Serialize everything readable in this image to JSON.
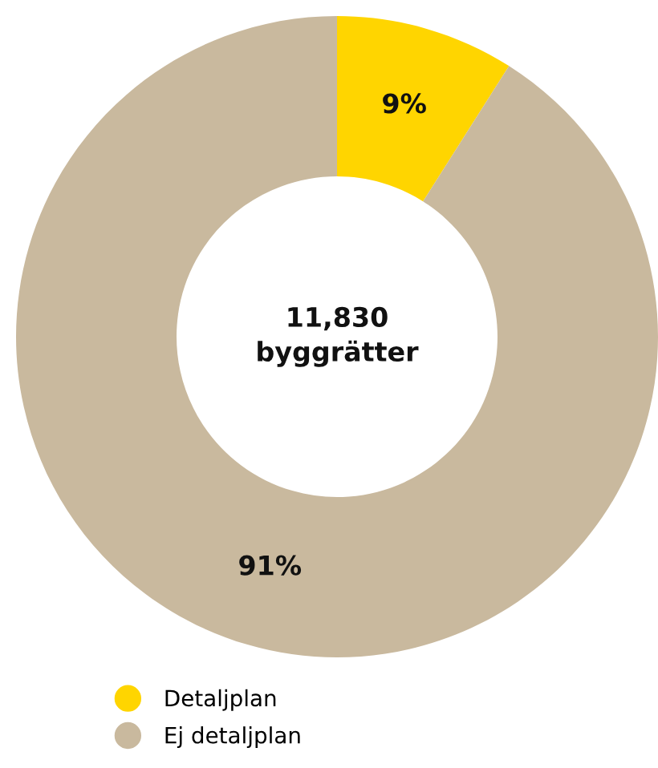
{
  "chart_data": {
    "type": "donut",
    "categories": [
      "Detaljplan",
      "Ej detaljplan"
    ],
    "values": [
      9,
      91
    ],
    "colors": [
      "#ffd500",
      "#c9b99e"
    ],
    "value_labels": [
      "9%",
      "91%"
    ],
    "annotations": [
      "11,830\nbyggrätter"
    ],
    "legend": "bottom left"
  }
}
